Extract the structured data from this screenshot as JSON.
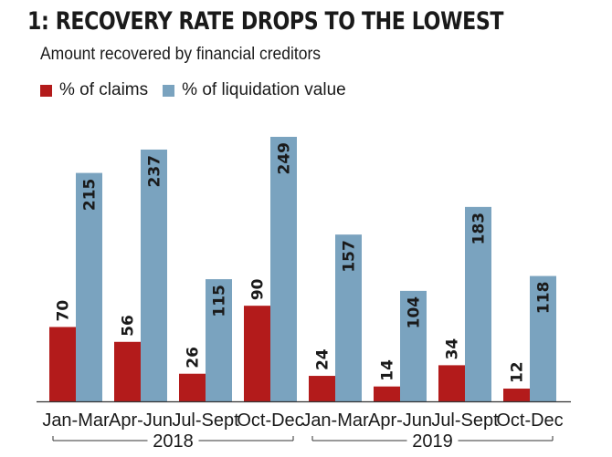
{
  "title": "1: RECOVERY RATE DROPS TO THE LOWEST",
  "subtitle": "Amount recovered by financial creditors",
  "colors": {
    "claims": "#b31b1b",
    "liquidation": "#7aa3bf",
    "axis": "#333333"
  },
  "chart_data": {
    "type": "bar",
    "title": "1: RECOVERY RATE DROPS TO THE LOWEST",
    "subtitle": "Amount recovered by financial creditors",
    "categories": [
      "Jan-Mar",
      "Apr-Jun",
      "Jul-Sept",
      "Oct-Dec",
      "Jan-Mar",
      "Apr-Jun",
      "Jul-Sept",
      "Oct-Dec"
    ],
    "groups": [
      {
        "label": "2018",
        "categories": [
          0,
          1,
          2,
          3
        ]
      },
      {
        "label": "2019",
        "categories": [
          4,
          5,
          6,
          7
        ]
      }
    ],
    "series": [
      {
        "name": "% of claims",
        "values": [
          70,
          56,
          26,
          90,
          24,
          14,
          34,
          12
        ],
        "color": "#b31b1b"
      },
      {
        "name": "% of liquidation value",
        "values": [
          215,
          237,
          115,
          249,
          157,
          104,
          183,
          118
        ],
        "color": "#7aa3bf"
      }
    ],
    "ylim": [
      0,
      260
    ],
    "legend": "top-left",
    "grid": false
  }
}
